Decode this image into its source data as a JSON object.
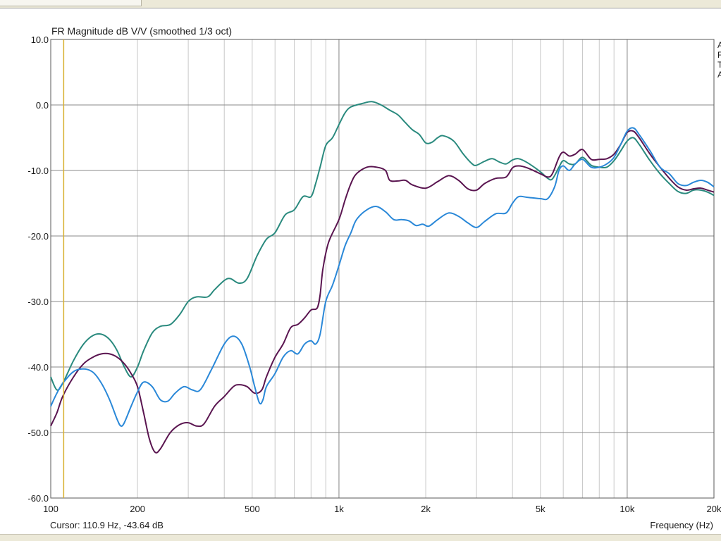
{
  "chart_data": {
    "type": "line",
    "title": "FR Magnitude dB V/V (smoothed 1/3 oct)",
    "xlabel": "Frequency (Hz)",
    "ylabel": "",
    "x_scale": "log",
    "xlim": [
      100,
      20000
    ],
    "ylim": [
      -60,
      10
    ],
    "grid": true,
    "x_ticks": [
      {
        "value": 100,
        "label": "100"
      },
      {
        "value": 200,
        "label": "200"
      },
      {
        "value": 500,
        "label": "500"
      },
      {
        "value": 1000,
        "label": "1k"
      },
      {
        "value": 2000,
        "label": "2k"
      },
      {
        "value": 5000,
        "label": "5k"
      },
      {
        "value": 10000,
        "label": "10k"
      },
      {
        "value": 20000,
        "label": "20k"
      }
    ],
    "y_ticks": [
      {
        "value": 10,
        "label": "10.0"
      },
      {
        "value": 0,
        "label": "0.0"
      },
      {
        "value": -10,
        "label": "-10.0"
      },
      {
        "value": -20,
        "label": "-20.0"
      },
      {
        "value": -30,
        "label": "-30.0"
      },
      {
        "value": -40,
        "label": "-40.0"
      },
      {
        "value": -50,
        "label": "-50.0"
      },
      {
        "value": -60,
        "label": "-60.0"
      }
    ],
    "cursor": {
      "x": 110.9,
      "text": "Cursor: 110.9 Hz, -43.64 dB",
      "color": "#d8b030"
    },
    "series": [
      {
        "color": "#2a8a7e",
        "points": [
          [
            100,
            -41.5
          ],
          [
            105,
            -43.5
          ],
          [
            110,
            -42.5
          ],
          [
            120,
            -39
          ],
          [
            130,
            -36.5
          ],
          [
            140,
            -35.2
          ],
          [
            150,
            -35.0
          ],
          [
            160,
            -35.8
          ],
          [
            170,
            -37.5
          ],
          [
            180,
            -40
          ],
          [
            190,
            -41.5
          ],
          [
            200,
            -40
          ],
          [
            210,
            -37.5
          ],
          [
            225,
            -34.8
          ],
          [
            240,
            -33.8
          ],
          [
            260,
            -33.5
          ],
          [
            280,
            -32
          ],
          [
            300,
            -30
          ],
          [
            320,
            -29.3
          ],
          [
            350,
            -29.3
          ],
          [
            370,
            -28.2
          ],
          [
            400,
            -26.8
          ],
          [
            420,
            -26.5
          ],
          [
            450,
            -27.2
          ],
          [
            480,
            -26.5
          ],
          [
            520,
            -23
          ],
          [
            560,
            -20.5
          ],
          [
            600,
            -19.5
          ],
          [
            650,
            -16.8
          ],
          [
            700,
            -16
          ],
          [
            750,
            -14
          ],
          [
            800,
            -14
          ],
          [
            830,
            -12
          ],
          [
            860,
            -9.5
          ],
          [
            900,
            -6.2
          ],
          [
            950,
            -5
          ],
          [
            1000,
            -3
          ],
          [
            1050,
            -1.2
          ],
          [
            1100,
            -0.3
          ],
          [
            1200,
            0.2
          ],
          [
            1300,
            0.5
          ],
          [
            1400,
            0
          ],
          [
            1500,
            -0.8
          ],
          [
            1600,
            -1.5
          ],
          [
            1700,
            -2.7
          ],
          [
            1800,
            -3.8
          ],
          [
            1900,
            -4.5
          ],
          [
            2000,
            -5.8
          ],
          [
            2100,
            -5.7
          ],
          [
            2200,
            -5
          ],
          [
            2300,
            -4.7
          ],
          [
            2500,
            -5.5
          ],
          [
            2700,
            -7.5
          ],
          [
            2900,
            -9
          ],
          [
            3000,
            -9.2
          ],
          [
            3200,
            -8.6
          ],
          [
            3400,
            -8.2
          ],
          [
            3600,
            -8.7
          ],
          [
            3800,
            -9
          ],
          [
            4000,
            -8.4
          ],
          [
            4200,
            -8.2
          ],
          [
            4500,
            -8.8
          ],
          [
            5000,
            -10.2
          ],
          [
            5300,
            -11.2
          ],
          [
            5500,
            -11.3
          ],
          [
            5800,
            -9.5
          ],
          [
            6000,
            -8.5
          ],
          [
            6300,
            -9
          ],
          [
            6600,
            -9
          ],
          [
            7000,
            -8
          ],
          [
            7500,
            -9.2
          ],
          [
            8000,
            -9.5
          ],
          [
            8500,
            -9.5
          ],
          [
            9000,
            -8.5
          ],
          [
            9500,
            -7
          ],
          [
            10000,
            -5.5
          ],
          [
            10500,
            -5
          ],
          [
            11000,
            -6
          ],
          [
            12000,
            -8.5
          ],
          [
            13000,
            -10.5
          ],
          [
            14000,
            -12
          ],
          [
            15000,
            -13.2
          ],
          [
            16000,
            -13.5
          ],
          [
            17000,
            -13
          ],
          [
            18000,
            -13
          ],
          [
            19000,
            -13.3
          ],
          [
            20000,
            -13.8
          ]
        ]
      },
      {
        "color": "#5a1550",
        "points": [
          [
            100,
            -49
          ],
          [
            105,
            -47
          ],
          [
            110,
            -44.5
          ],
          [
            120,
            -41.5
          ],
          [
            130,
            -39.5
          ],
          [
            140,
            -38.5
          ],
          [
            150,
            -38
          ],
          [
            160,
            -38
          ],
          [
            170,
            -38.5
          ],
          [
            180,
            -39.5
          ],
          [
            190,
            -41
          ],
          [
            200,
            -43
          ],
          [
            210,
            -47
          ],
          [
            220,
            -51
          ],
          [
            230,
            -53
          ],
          [
            240,
            -52.5
          ],
          [
            260,
            -50
          ],
          [
            280,
            -48.8
          ],
          [
            300,
            -48.5
          ],
          [
            320,
            -49
          ],
          [
            340,
            -48.7
          ],
          [
            370,
            -46
          ],
          [
            400,
            -44.5
          ],
          [
            430,
            -43
          ],
          [
            450,
            -42.7
          ],
          [
            480,
            -43
          ],
          [
            510,
            -44
          ],
          [
            540,
            -43.5
          ],
          [
            560,
            -41.5
          ],
          [
            600,
            -38.5
          ],
          [
            640,
            -36.5
          ],
          [
            680,
            -34
          ],
          [
            720,
            -33.5
          ],
          [
            760,
            -32.5
          ],
          [
            800,
            -31.3
          ],
          [
            840,
            -31
          ],
          [
            860,
            -29
          ],
          [
            880,
            -25
          ],
          [
            920,
            -21
          ],
          [
            1000,
            -17.5
          ],
          [
            1050,
            -14.5
          ],
          [
            1100,
            -12
          ],
          [
            1150,
            -10.5
          ],
          [
            1250,
            -9.5
          ],
          [
            1350,
            -9.5
          ],
          [
            1450,
            -10
          ],
          [
            1500,
            -11.5
          ],
          [
            1600,
            -11.6
          ],
          [
            1700,
            -11.5
          ],
          [
            1800,
            -12.2
          ],
          [
            2000,
            -12.7
          ],
          [
            2200,
            -11.7
          ],
          [
            2400,
            -10.8
          ],
          [
            2600,
            -11.5
          ],
          [
            2800,
            -12.8
          ],
          [
            3000,
            -13
          ],
          [
            3200,
            -12
          ],
          [
            3500,
            -11.2
          ],
          [
            3800,
            -11
          ],
          [
            4000,
            -9.6
          ],
          [
            4200,
            -9.3
          ],
          [
            4500,
            -9.6
          ],
          [
            5000,
            -10.5
          ],
          [
            5300,
            -11
          ],
          [
            5500,
            -10.5
          ],
          [
            5800,
            -8
          ],
          [
            6000,
            -7.2
          ],
          [
            6300,
            -7.8
          ],
          [
            6600,
            -7.5
          ],
          [
            7000,
            -6.8
          ],
          [
            7500,
            -8.3
          ],
          [
            8000,
            -8.3
          ],
          [
            8500,
            -8.2
          ],
          [
            9000,
            -7.5
          ],
          [
            9500,
            -6
          ],
          [
            10000,
            -4.2
          ],
          [
            10500,
            -4
          ],
          [
            11000,
            -5
          ],
          [
            12000,
            -7.5
          ],
          [
            13000,
            -9.5
          ],
          [
            14000,
            -11.2
          ],
          [
            15000,
            -12.5
          ],
          [
            16000,
            -13
          ],
          [
            17000,
            -12.8
          ],
          [
            18000,
            -12.7
          ],
          [
            19000,
            -13
          ],
          [
            20000,
            -13.3
          ]
        ]
      },
      {
        "color": "#2a88d8",
        "points": [
          [
            100,
            -46
          ],
          [
            105,
            -44
          ],
          [
            110,
            -42.5
          ],
          [
            120,
            -40.7
          ],
          [
            130,
            -40.3
          ],
          [
            140,
            -40.8
          ],
          [
            150,
            -42.5
          ],
          [
            160,
            -45
          ],
          [
            170,
            -48
          ],
          [
            175,
            -49
          ],
          [
            180,
            -48.5
          ],
          [
            190,
            -46
          ],
          [
            200,
            -43.8
          ],
          [
            210,
            -42.3
          ],
          [
            225,
            -43
          ],
          [
            240,
            -45
          ],
          [
            255,
            -45.2
          ],
          [
            270,
            -44
          ],
          [
            290,
            -43
          ],
          [
            310,
            -43.5
          ],
          [
            330,
            -43.5
          ],
          [
            360,
            -40.5
          ],
          [
            400,
            -36.5
          ],
          [
            430,
            -35.3
          ],
          [
            460,
            -36.5
          ],
          [
            490,
            -40
          ],
          [
            510,
            -43
          ],
          [
            530,
            -45.5
          ],
          [
            545,
            -45
          ],
          [
            560,
            -43
          ],
          [
            600,
            -41
          ],
          [
            640,
            -38.5
          ],
          [
            680,
            -37.5
          ],
          [
            720,
            -38
          ],
          [
            760,
            -36.5
          ],
          [
            800,
            -36
          ],
          [
            830,
            -36.5
          ],
          [
            860,
            -35
          ],
          [
            900,
            -30
          ],
          [
            950,
            -27.5
          ],
          [
            1000,
            -24.5
          ],
          [
            1050,
            -21.5
          ],
          [
            1100,
            -19.5
          ],
          [
            1150,
            -17.5
          ],
          [
            1250,
            -16
          ],
          [
            1350,
            -15.5
          ],
          [
            1450,
            -16.3
          ],
          [
            1550,
            -17.5
          ],
          [
            1650,
            -17.5
          ],
          [
            1750,
            -17.7
          ],
          [
            1850,
            -18.4
          ],
          [
            1950,
            -18.2
          ],
          [
            2050,
            -18.5
          ],
          [
            2200,
            -17.5
          ],
          [
            2400,
            -16.5
          ],
          [
            2600,
            -17
          ],
          [
            2800,
            -18
          ],
          [
            3000,
            -18.7
          ],
          [
            3200,
            -17.8
          ],
          [
            3500,
            -16.6
          ],
          [
            3800,
            -16.5
          ],
          [
            4000,
            -15
          ],
          [
            4200,
            -14
          ],
          [
            4500,
            -14.1
          ],
          [
            5000,
            -14.3
          ],
          [
            5300,
            -14.3
          ],
          [
            5600,
            -12.5
          ],
          [
            5800,
            -10
          ],
          [
            6000,
            -9.3
          ],
          [
            6300,
            -10
          ],
          [
            6600,
            -9
          ],
          [
            7000,
            -8.3
          ],
          [
            7500,
            -9.5
          ],
          [
            8000,
            -9.5
          ],
          [
            8500,
            -9
          ],
          [
            9000,
            -8
          ],
          [
            9500,
            -6
          ],
          [
            10000,
            -4
          ],
          [
            10500,
            -3.5
          ],
          [
            11000,
            -4.5
          ],
          [
            12000,
            -7
          ],
          [
            13000,
            -9.5
          ],
          [
            14000,
            -10.5
          ],
          [
            15000,
            -12
          ],
          [
            16000,
            -12.3
          ],
          [
            17000,
            -11.8
          ],
          [
            18000,
            -11.5
          ],
          [
            19000,
            -11.8
          ],
          [
            20000,
            -12.5
          ]
        ]
      }
    ]
  }
}
